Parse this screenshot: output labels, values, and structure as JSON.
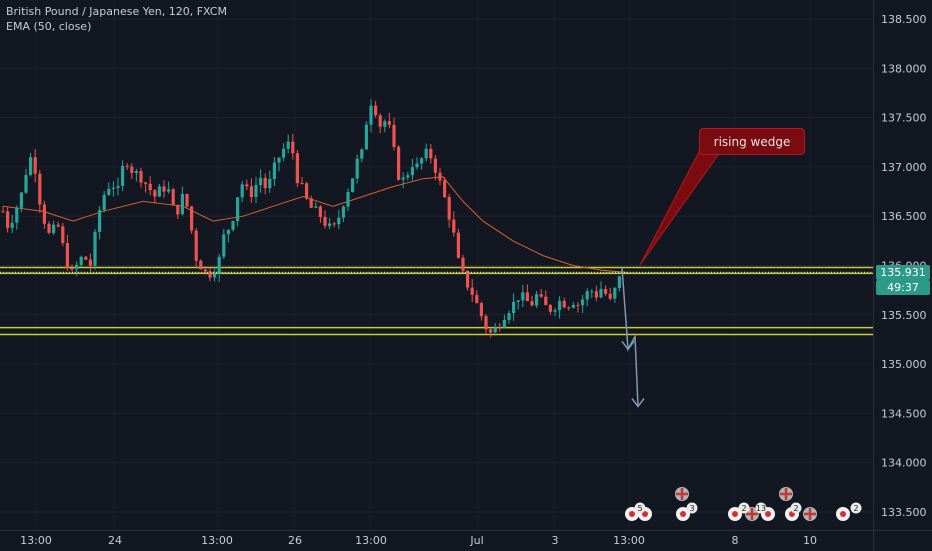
{
  "legend": {
    "symbol_line": "British Pound / Japanese Yen, 120, FXCM",
    "indicator_line": "EMA (50, close)"
  },
  "annotation": {
    "text": "rising wedge"
  },
  "price_tags": {
    "last_price": "135.931",
    "countdown": "49:37"
  },
  "colors": {
    "background": "#131722",
    "bull_candle": "#26a69a",
    "bear_candle": "#ef5350",
    "ema_line": "#d7602a",
    "level_line": "#c4cf2e",
    "last_price_line": "#eef3e8",
    "projection_arrow": "#7f98b3",
    "annotation_bg": "#7a0b10",
    "axis_text": "#c9ccd4"
  },
  "chart_data": {
    "type": "candlestick",
    "title": "British Pound / Japanese Yen, 120, FXCM",
    "y_axis": {
      "ticks": [
        "133.500",
        "134.000",
        "134.500",
        "135.000",
        "135.500",
        "136.000",
        "136.500",
        "137.000",
        "137.500",
        "138.000",
        "138.500"
      ],
      "range": [
        133.35,
        138.8
      ]
    },
    "x_axis": {
      "ticks": [
        "13:00",
        "24",
        "13:00",
        "26",
        "13:00",
        "Jul",
        "3",
        "13:00",
        "8",
        "10",
        "13:00"
      ]
    },
    "price_path": [
      [
        0,
        136.55
      ],
      [
        5,
        136.4
      ],
      [
        10,
        136.5
      ],
      [
        18,
        136.7
      ],
      [
        24,
        137.0
      ],
      [
        30,
        137.15
      ],
      [
        36,
        136.7
      ],
      [
        45,
        136.3
      ],
      [
        55,
        136.4
      ],
      [
        62,
        136.1
      ],
      [
        68,
        135.9
      ],
      [
        74,
        136.0
      ],
      [
        80,
        136.1
      ],
      [
        88,
        136.0
      ],
      [
        95,
        136.5
      ],
      [
        100,
        136.7
      ],
      [
        108,
        136.85
      ],
      [
        115,
        136.75
      ],
      [
        122,
        137.1
      ],
      [
        130,
        136.95
      ],
      [
        138,
        136.9
      ],
      [
        145,
        136.8
      ],
      [
        152,
        136.7
      ],
      [
        160,
        136.8
      ],
      [
        166,
        136.75
      ],
      [
        172,
        136.5
      ],
      [
        180,
        136.7
      ],
      [
        186,
        136.55
      ],
      [
        192,
        136.1
      ],
      [
        198,
        136.0
      ],
      [
        204,
        135.9
      ],
      [
        210,
        135.95
      ],
      [
        216,
        136.05
      ],
      [
        222,
        136.35
      ],
      [
        228,
        136.4
      ],
      [
        234,
        136.7
      ],
      [
        240,
        136.85
      ],
      [
        246,
        136.7
      ],
      [
        252,
        136.8
      ],
      [
        258,
        136.9
      ],
      [
        264,
        136.75
      ],
      [
        270,
        136.95
      ],
      [
        276,
        137.1
      ],
      [
        282,
        137.2
      ],
      [
        288,
        137.25
      ],
      [
        294,
        136.9
      ],
      [
        300,
        136.75
      ],
      [
        306,
        136.6
      ],
      [
        312,
        136.55
      ],
      [
        318,
        136.5
      ],
      [
        324,
        136.4
      ],
      [
        330,
        136.35
      ],
      [
        336,
        136.5
      ],
      [
        342,
        136.7
      ],
      [
        348,
        136.85
      ],
      [
        354,
        137.05
      ],
      [
        360,
        137.15
      ],
      [
        366,
        137.7
      ],
      [
        372,
        137.6
      ],
      [
        378,
        137.4
      ],
      [
        384,
        137.5
      ],
      [
        390,
        137.2
      ],
      [
        396,
        136.9
      ],
      [
        402,
        136.85
      ],
      [
        408,
        137.05
      ],
      [
        414,
        137.0
      ],
      [
        420,
        137.1
      ],
      [
        426,
        137.15
      ],
      [
        432,
        137.0
      ],
      [
        438,
        136.8
      ],
      [
        444,
        136.6
      ],
      [
        450,
        136.35
      ],
      [
        456,
        136.0
      ],
      [
        462,
        135.85
      ],
      [
        468,
        135.75
      ],
      [
        474,
        135.6
      ],
      [
        480,
        135.45
      ],
      [
        486,
        135.3
      ],
      [
        492,
        135.35
      ],
      [
        498,
        135.45
      ],
      [
        504,
        135.55
      ],
      [
        510,
        135.6
      ],
      [
        516,
        135.7
      ],
      [
        522,
        135.65
      ],
      [
        528,
        135.6
      ],
      [
        534,
        135.7
      ],
      [
        540,
        135.6
      ],
      [
        546,
        135.55
      ],
      [
        552,
        135.6
      ],
      [
        558,
        135.65
      ],
      [
        564,
        135.6
      ],
      [
        570,
        135.65
      ],
      [
        576,
        135.6
      ],
      [
        582,
        135.7
      ],
      [
        588,
        135.75
      ],
      [
        594,
        135.7
      ],
      [
        600,
        135.8
      ],
      [
        606,
        135.6
      ],
      [
        612,
        135.75
      ],
      [
        618,
        135.9
      ],
      [
        624,
        135.93
      ]
    ],
    "ema_path": [
      [
        0,
        136.6
      ],
      [
        40,
        136.55
      ],
      [
        70,
        136.45
      ],
      [
        100,
        136.55
      ],
      [
        140,
        136.65
      ],
      [
        180,
        136.6
      ],
      [
        210,
        136.45
      ],
      [
        240,
        136.5
      ],
      [
        270,
        136.6
      ],
      [
        300,
        136.7
      ],
      [
        330,
        136.6
      ],
      [
        360,
        136.7
      ],
      [
        390,
        136.8
      ],
      [
        420,
        136.88
      ],
      [
        440,
        136.9
      ],
      [
        460,
        136.65
      ],
      [
        480,
        136.45
      ],
      [
        510,
        136.25
      ],
      [
        540,
        136.1
      ],
      [
        570,
        136.0
      ],
      [
        600,
        135.95
      ],
      [
        624,
        135.93
      ]
    ],
    "levels": [
      135.98,
      135.92,
      135.37,
      135.3
    ],
    "last_price": 135.931,
    "projection": [
      [
        622,
        135.98
      ],
      [
        628,
        135.15
      ],
      [
        635,
        135.28
      ],
      [
        638,
        134.57
      ]
    ]
  },
  "event_icons": {
    "badges": [
      "5",
      "3",
      "2",
      "13",
      "2",
      "2"
    ]
  }
}
